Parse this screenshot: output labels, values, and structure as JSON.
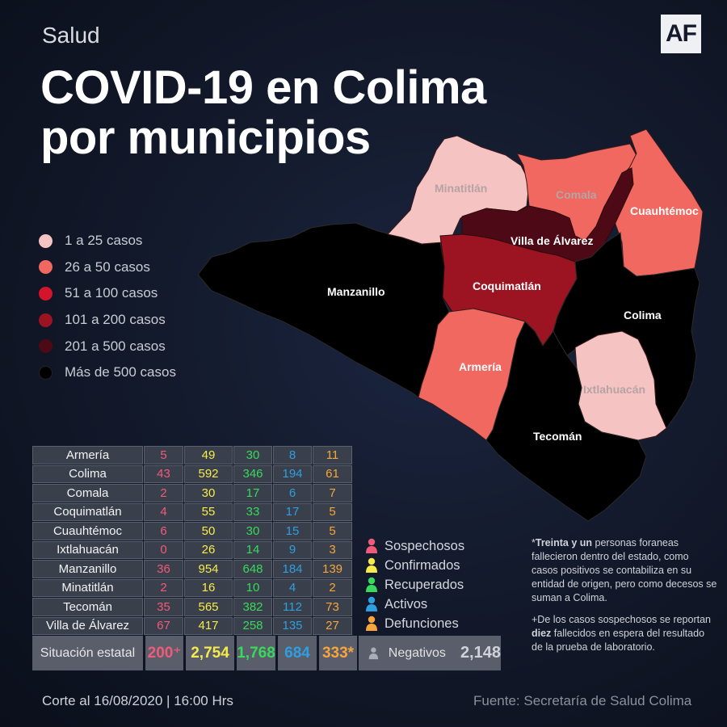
{
  "header": {
    "section": "Salud",
    "logo": "AF",
    "title_line1": "COVID-19 en Colima",
    "title_line2": "por municipios"
  },
  "legend": [
    {
      "label": "1 a 25 casos",
      "color": "#f6c3c3"
    },
    {
      "label": "26 a 50 casos",
      "color": "#f0685f"
    },
    {
      "label": "51 a 100 casos",
      "color": "#d3142a"
    },
    {
      "label": "101 a 200 casos",
      "color": "#9c1322"
    },
    {
      "label": "201 a 500 casos",
      "color": "#4d0a16"
    },
    {
      "label": "Más de 500 casos",
      "color": "#000000"
    }
  ],
  "map_labels": {
    "minatitlan": "Minatitlán",
    "comala": "Comala",
    "cuauhtemoc": "Cuauhtémoc",
    "villa": "Villa de Álvarez",
    "manzanillo": "Manzanillo",
    "coquimatlan": "Coquimatlán",
    "colima": "Colima",
    "armeria": "Armería",
    "ixtlahuacan": "Ixtlahuacán",
    "tecoman": "Tecomán"
  },
  "table": {
    "rows": [
      {
        "name": "Armería",
        "sospechosos": "5",
        "confirmados": "49",
        "recuperados": "30",
        "activos": "8",
        "defunciones": "11"
      },
      {
        "name": "Colima",
        "sospechosos": "43",
        "confirmados": "592",
        "recuperados": "346",
        "activos": "194",
        "defunciones": "61"
      },
      {
        "name": "Comala",
        "sospechosos": "2",
        "confirmados": "30",
        "recuperados": "17",
        "activos": "6",
        "defunciones": "7"
      },
      {
        "name": "Coquimatlán",
        "sospechosos": "4",
        "confirmados": "55",
        "recuperados": "33",
        "activos": "17",
        "defunciones": "5"
      },
      {
        "name": "Cuauhtémoc",
        "sospechosos": "6",
        "confirmados": "50",
        "recuperados": "30",
        "activos": "15",
        "defunciones": "5"
      },
      {
        "name": "Ixtlahuacán",
        "sospechosos": "0",
        "confirmados": "26",
        "recuperados": "14",
        "activos": "9",
        "defunciones": "3"
      },
      {
        "name": "Manzanillo",
        "sospechosos": "36",
        "confirmados": "954",
        "recuperados": "648",
        "activos": "184",
        "defunciones": "139"
      },
      {
        "name": "Minatitlán",
        "sospechosos": "2",
        "confirmados": "16",
        "recuperados": "10",
        "activos": "4",
        "defunciones": "2"
      },
      {
        "name": "Tecomán",
        "sospechosos": "35",
        "confirmados": "565",
        "recuperados": "382",
        "activos": "112",
        "defunciones": "73"
      },
      {
        "name": "Villa de Álvarez",
        "sospechosos": "67",
        "confirmados": "417",
        "recuperados": "258",
        "activos": "135",
        "defunciones": "27"
      }
    ],
    "summary": {
      "label": "Situación estatal",
      "sospechosos": "200⁺",
      "confirmados": "2,754",
      "recuperados": "1,768",
      "activos": "684",
      "defunciones": "333*"
    }
  },
  "negatives": {
    "label": "Negativos",
    "value": "2,148"
  },
  "status_legend": [
    {
      "label": "Sospechosos",
      "color": "#f15b7a"
    },
    {
      "label": "Confirmados",
      "color": "#f6eb4b"
    },
    {
      "label": "Recuperados",
      "color": "#38d95c"
    },
    {
      "label": "Activos",
      "color": "#2e9fe0"
    },
    {
      "label": "Defunciones",
      "color": "#f7a53c"
    }
  ],
  "notes": {
    "note1_prefix": "*",
    "note1_bold": "Treinta y un",
    "note1_text": " personas foraneas fallecieron dentro del estado, como casos positivos se contabiliza en su entidad de origen, pero como decesos se suman a Colima.",
    "note2_prefix": "+De los casos sospechosos se reportan ",
    "note2_bold": "diez",
    "note2_text": " fallecidos en espera del resultado de la prueba de laboratorio."
  },
  "footer": {
    "cutoff": "Corte al 16/08/2020 | 16:00 Hrs",
    "source": "Fuente: Secretaría de Salud Colima"
  }
}
